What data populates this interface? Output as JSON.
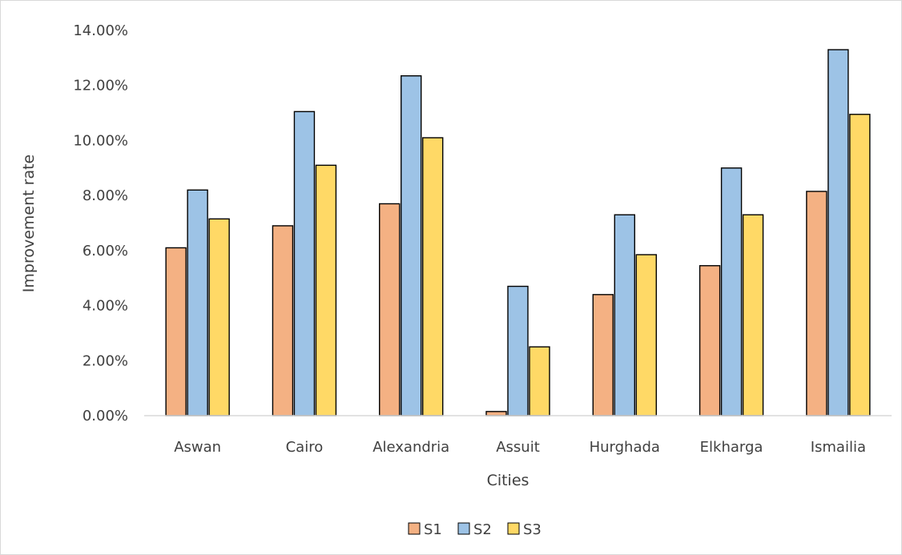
{
  "chart_data": {
    "type": "bar",
    "title": "",
    "xlabel": "Cities",
    "ylabel": "Improvement rate",
    "categories": [
      "Aswan",
      "Cairo",
      "Alexandria",
      "Assuit",
      "Hurghada",
      "Elkharga",
      "Ismailia"
    ],
    "series": [
      {
        "name": "S1",
        "color": "#F4B183",
        "values": [
          6.1,
          6.9,
          7.7,
          0.15,
          4.4,
          5.45,
          8.15
        ]
      },
      {
        "name": "S2",
        "color": "#9DC3E6",
        "values": [
          8.2,
          11.05,
          12.35,
          4.7,
          7.3,
          9.0,
          13.3
        ]
      },
      {
        "name": "S3",
        "color": "#FFD966",
        "values": [
          7.15,
          9.1,
          10.1,
          2.5,
          5.85,
          7.3,
          10.95
        ]
      }
    ],
    "ylim": [
      0,
      14
    ],
    "yticks": [
      "0.00%",
      "2.00%",
      "4.00%",
      "6.00%",
      "8.00%",
      "10.00%",
      "12.00%",
      "14.00%"
    ],
    "grid": false,
    "legend_position": "bottom",
    "bar_outline_color": "#000000",
    "axis_color": "#d9d9d9"
  }
}
